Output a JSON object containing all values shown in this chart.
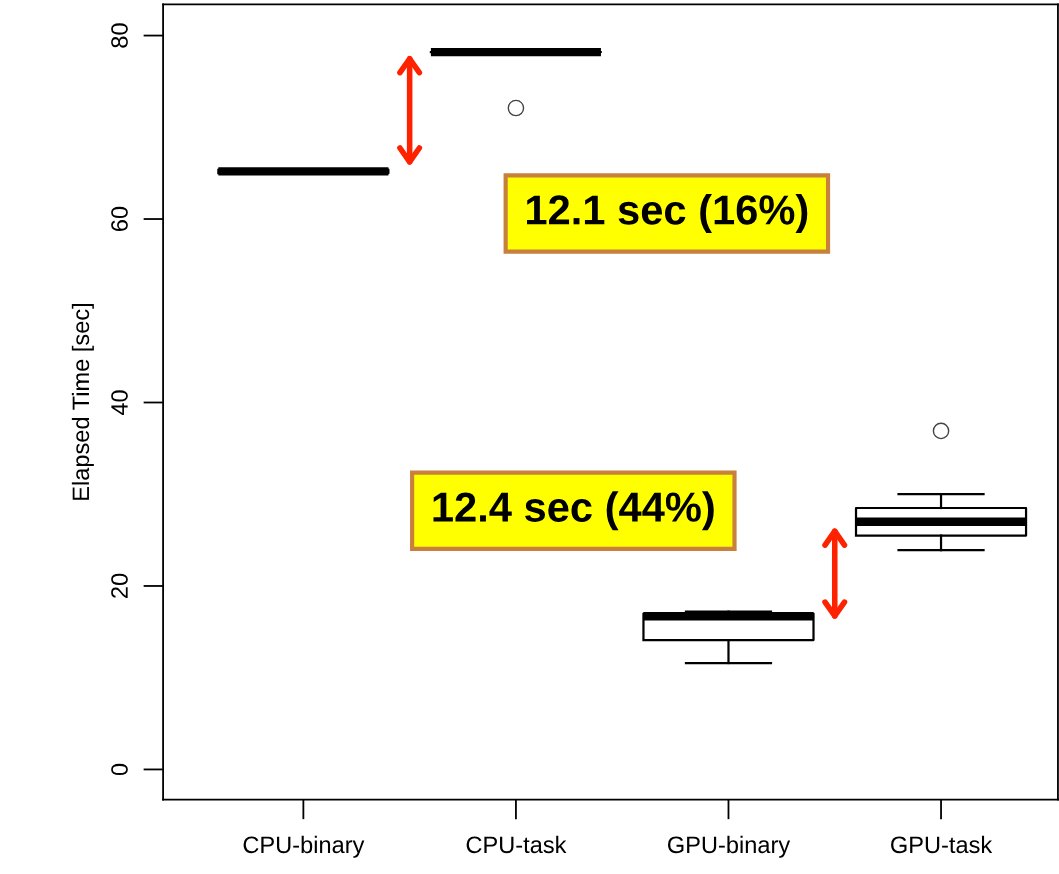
{
  "chart_data": {
    "type": "box",
    "ylabel": "Elapsed Time [sec]",
    "categories": [
      "CPU-binary",
      "CPU-task",
      "GPU-binary",
      "GPU-task"
    ],
    "boxes": [
      {
        "low": 65.0,
        "q1": 65.0,
        "median": 65.2,
        "q3": 65.4,
        "high": 65.4
      },
      {
        "low": 78.2,
        "q1": 78.2,
        "median": 78.2,
        "q3": 78.2,
        "high": 78.2,
        "outliers": [
          72.1
        ]
      },
      {
        "low": 11.6,
        "q1": 14.1,
        "median": 16.7,
        "q3": 17.0,
        "high": 17.2
      },
      {
        "low": 23.9,
        "q1": 25.5,
        "median": 27.0,
        "q3": 28.5,
        "high": 30.0,
        "outliers": [
          36.9
        ]
      }
    ],
    "ylim": [
      -3.3,
      83.4
    ],
    "yticks": [
      0,
      20,
      40,
      60,
      80
    ],
    "grid": false,
    "annotations": [
      "12.1 sec (16%)",
      "12.4 sec (44%)"
    ]
  }
}
